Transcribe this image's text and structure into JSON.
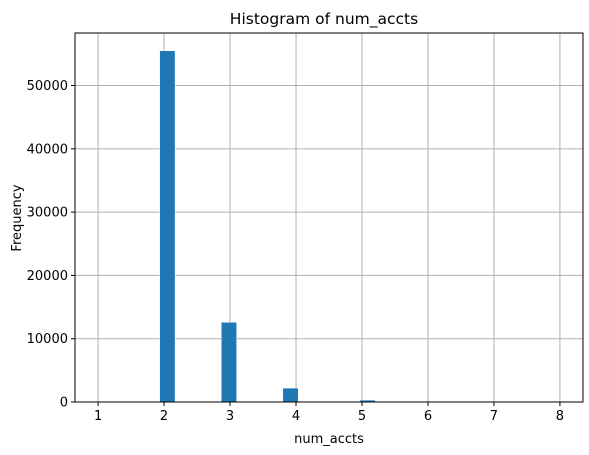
{
  "chart_data": {
    "type": "bar",
    "title": "Histogram of num_accts",
    "xlabel": "num_accts",
    "ylabel": "Frequency",
    "xlim": [
      0.65,
      8.35
    ],
    "ylim": [
      0,
      58300
    ],
    "x_ticks": [
      "1",
      "2",
      "3",
      "4",
      "5",
      "6",
      "7",
      "8"
    ],
    "y_ticks": [
      "0",
      "10000",
      "20000",
      "30000",
      "40000",
      "50000"
    ],
    "grid": true,
    "bar_color": "#1f77b4",
    "bin_width": 0.2333,
    "bins": [
      {
        "x_start": 1.9333,
        "value": 55500
      },
      {
        "x_start": 2.8667,
        "value": 12600
      },
      {
        "x_start": 3.8,
        "value": 2200
      },
      {
        "x_start": 4.9667,
        "value": 300
      },
      {
        "x_start": 5.9,
        "value": 20
      },
      {
        "x_start": 6.8333,
        "value": 5
      },
      {
        "x_start": 7.7667,
        "value": 2
      }
    ]
  }
}
